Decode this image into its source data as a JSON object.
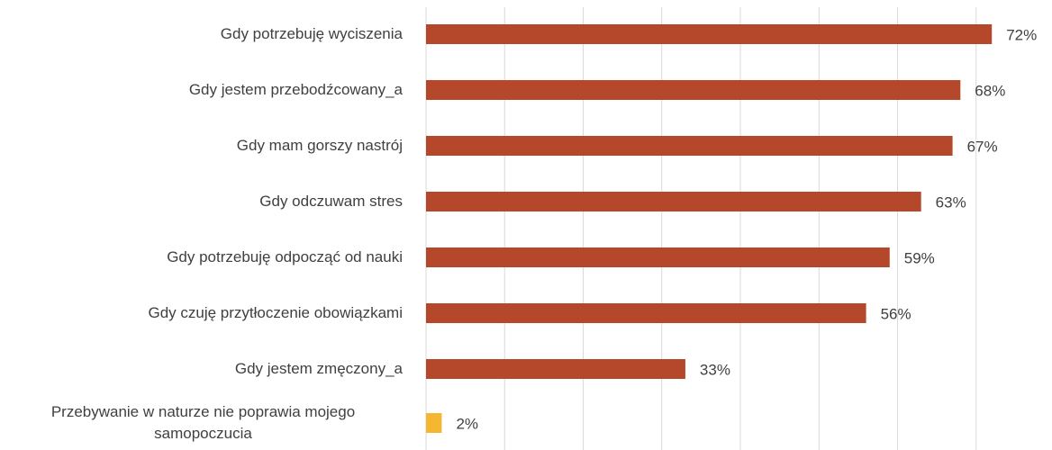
{
  "chart_data": {
    "type": "barh",
    "categories": [
      "Gdy potrzebuję wyciszenia",
      "Gdy jestem przebodźcowany_a",
      "Gdy mam gorszy nastrój",
      "Gdy odczuwam stres",
      "Gdy potrzebuję odpocząć od nauki",
      "Gdy czuję przytłoczenie obowiązkami",
      "Gdy jestem zmęczony_a",
      "Przebywanie w naturze nie poprawia mojego samopoczucia"
    ],
    "values": [
      72,
      68,
      67,
      63,
      59,
      56,
      33,
      2
    ],
    "value_labels": [
      "72%",
      "68%",
      "67%",
      "63%",
      "59%",
      "56%",
      "33%",
      "2%"
    ],
    "colors": [
      "#b5482a",
      "#b5482a",
      "#b5482a",
      "#b5482a",
      "#b5482a",
      "#b5482a",
      "#b5482a",
      "#f5b731"
    ],
    "xlim": [
      0,
      80
    ],
    "xticks": [
      0,
      10,
      20,
      30,
      40,
      50,
      60,
      70
    ],
    "grid": true
  }
}
